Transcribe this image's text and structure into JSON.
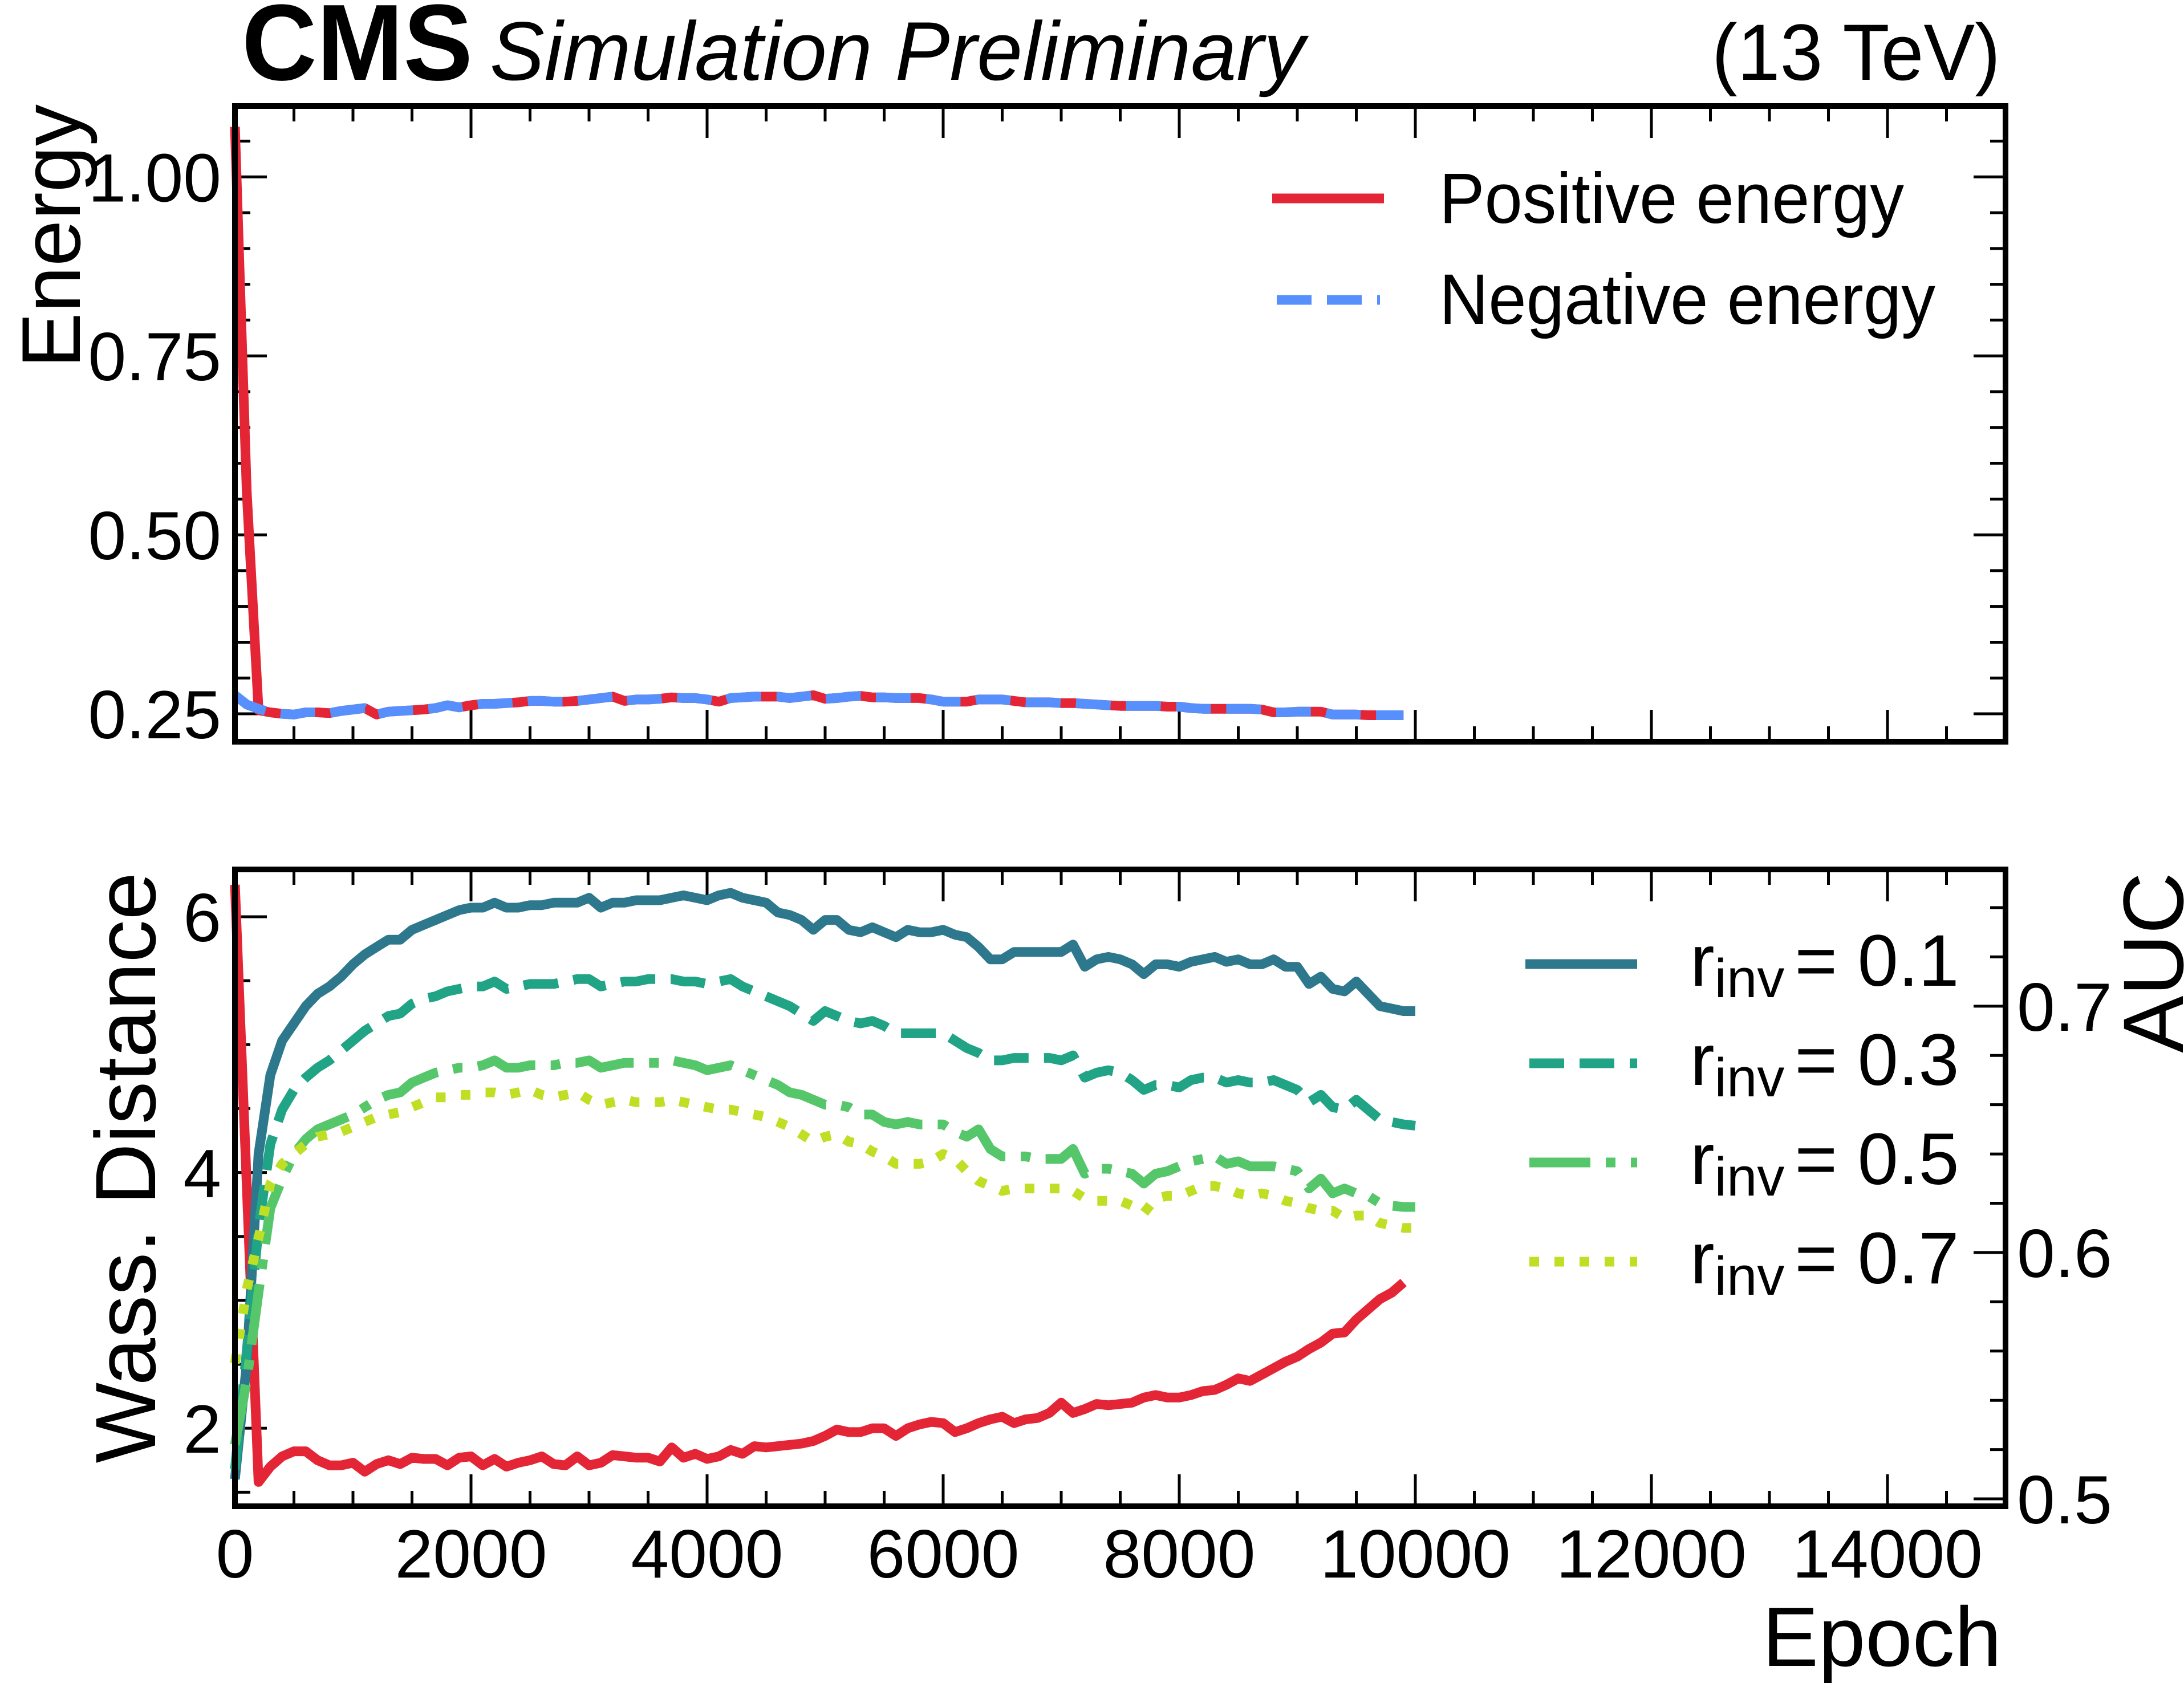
{
  "header": {
    "experiment": "CMS",
    "status": "Simulation Preliminary",
    "energy": "(13 TeV)"
  },
  "colors": {
    "positive_energy": "#E42536",
    "negative_energy": "#5790FC",
    "wass_distance": "#E42536",
    "rinv_0_1": "#2E788E",
    "rinv_0_3": "#21A385",
    "rinv_0_5": "#55C66A",
    "rinv_0_7": "#BFDF25",
    "axis": "#000000"
  },
  "chart_data": [
    {
      "type": "line",
      "panel": "top",
      "title": "",
      "xlabel": "",
      "ylabel": "Energy",
      "xlim": [
        0,
        15000
      ],
      "ylim": [
        0.211,
        1.099
      ],
      "x_ticks": [
        0,
        2000,
        4000,
        6000,
        8000,
        10000,
        12000,
        14000
      ],
      "x_minor_step": 500,
      "x_tick_labels_shown": false,
      "y_ticks": [
        0.25,
        0.5,
        0.75,
        1.0
      ],
      "y_tick_labels": [
        "0.25",
        "0.50",
        "0.75",
        "1.00"
      ],
      "y_minor_step": 0.05,
      "grid": false,
      "legend_position": "top-right",
      "epoch_start": 0,
      "epoch_step": 100,
      "series": [
        {
          "name": "Positive energy",
          "style": "solid",
          "color_key": "positive_energy",
          "axis": "left",
          "values": [
            1.07,
            0.56,
            0.255,
            0.252,
            0.25,
            0.249,
            0.252,
            0.252,
            0.251,
            0.254,
            0.256,
            0.258,
            0.249,
            0.253,
            0.254,
            0.255,
            0.256,
            0.258,
            0.262,
            0.259,
            0.262,
            0.264,
            0.264,
            0.265,
            0.266,
            0.268,
            0.268,
            0.267,
            0.267,
            0.268,
            0.27,
            0.272,
            0.274,
            0.268,
            0.27,
            0.27,
            0.271,
            0.273,
            0.272,
            0.272,
            0.27,
            0.267,
            0.272,
            0.273,
            0.274,
            0.274,
            0.274,
            0.272,
            0.274,
            0.276,
            0.271,
            0.272,
            0.274,
            0.275,
            0.273,
            0.273,
            0.272,
            0.272,
            0.272,
            0.27,
            0.267,
            0.267,
            0.267,
            0.27,
            0.27,
            0.27,
            0.268,
            0.266,
            0.266,
            0.266,
            0.265,
            0.265,
            0.264,
            0.263,
            0.262,
            0.261,
            0.261,
            0.261,
            0.261,
            0.26,
            0.26,
            0.258,
            0.257,
            0.257,
            0.257,
            0.257,
            0.257,
            0.256,
            0.252,
            0.252,
            0.253,
            0.253,
            0.253,
            0.249,
            0.249,
            0.249,
            0.248,
            0.248,
            0.248,
            0.248
          ]
        },
        {
          "name": "Negative energy",
          "style": "dashed",
          "color_key": "negative_energy",
          "axis": "left",
          "values": [
            0.276,
            0.263,
            0.257,
            0.252,
            0.25,
            0.249,
            0.252,
            0.252,
            0.251,
            0.254,
            0.256,
            0.258,
            0.249,
            0.253,
            0.254,
            0.255,
            0.256,
            0.258,
            0.262,
            0.259,
            0.262,
            0.264,
            0.264,
            0.265,
            0.266,
            0.268,
            0.268,
            0.267,
            0.267,
            0.268,
            0.27,
            0.272,
            0.274,
            0.268,
            0.27,
            0.27,
            0.271,
            0.273,
            0.272,
            0.272,
            0.27,
            0.267,
            0.272,
            0.273,
            0.274,
            0.274,
            0.274,
            0.272,
            0.274,
            0.276,
            0.271,
            0.272,
            0.274,
            0.275,
            0.273,
            0.273,
            0.272,
            0.272,
            0.272,
            0.27,
            0.267,
            0.267,
            0.267,
            0.27,
            0.27,
            0.27,
            0.268,
            0.266,
            0.266,
            0.266,
            0.265,
            0.265,
            0.264,
            0.263,
            0.262,
            0.261,
            0.261,
            0.261,
            0.261,
            0.26,
            0.26,
            0.258,
            0.257,
            0.257,
            0.257,
            0.257,
            0.257,
            0.256,
            0.252,
            0.252,
            0.253,
            0.253,
            0.253,
            0.249,
            0.249,
            0.249,
            0.248,
            0.248,
            0.248,
            0.248
          ]
        }
      ]
    },
    {
      "type": "line",
      "panel": "bottom",
      "title": "",
      "xlabel": "Epoch",
      "ylabel": "Wass.  Distance",
      "ylabel_right": "AUC",
      "xlim": [
        0,
        15000
      ],
      "ylim": [
        1.39,
        6.37
      ],
      "ylim_right": [
        0.497,
        0.7555
      ],
      "x_ticks": [
        0,
        2000,
        4000,
        6000,
        8000,
        10000,
        12000,
        14000
      ],
      "x_tick_labels": [
        "0",
        "2000",
        "4000",
        "6000",
        "8000",
        "10000",
        "12000",
        "14000"
      ],
      "x_minor_step": 500,
      "y_ticks": [
        2,
        4,
        6
      ],
      "y_tick_labels": [
        "2",
        "4",
        "6"
      ],
      "y_minor_step": 0.5,
      "y_ticks_right": [
        0.5,
        0.6,
        0.7
      ],
      "y_tick_labels_right": [
        "0.5",
        "0.6",
        "0.7"
      ],
      "y_minor_step_right": 0.02,
      "grid": false,
      "legend_position": "top-right",
      "epoch_start": 0,
      "epoch_step": 100,
      "series": [
        {
          "name": "Wass. Distance",
          "style": "solid",
          "color_key": "wass_distance",
          "axis": "left",
          "values": [
            6.25,
            3.9,
            1.58,
            1.7,
            1.78,
            1.82,
            1.82,
            1.75,
            1.71,
            1.71,
            1.73,
            1.66,
            1.72,
            1.75,
            1.72,
            1.77,
            1.76,
            1.76,
            1.71,
            1.77,
            1.78,
            1.71,
            1.76,
            1.7,
            1.73,
            1.75,
            1.78,
            1.72,
            1.71,
            1.78,
            1.71,
            1.73,
            1.79,
            1.78,
            1.77,
            1.77,
            1.74,
            1.85,
            1.77,
            1.8,
            1.76,
            1.78,
            1.83,
            1.8,
            1.86,
            1.85,
            1.86,
            1.87,
            1.88,
            1.9,
            1.94,
            1.99,
            1.97,
            1.97,
            2.0,
            2.0,
            1.94,
            2.0,
            2.03,
            2.05,
            2.04,
            1.97,
            2.0,
            2.04,
            2.07,
            2.09,
            2.04,
            2.07,
            2.08,
            2.12,
            2.2,
            2.12,
            2.15,
            2.19,
            2.18,
            2.19,
            2.2,
            2.24,
            2.26,
            2.24,
            2.24,
            2.26,
            2.29,
            2.3,
            2.34,
            2.39,
            2.37,
            2.42,
            2.47,
            2.52,
            2.56,
            2.62,
            2.67,
            2.74,
            2.75,
            2.85,
            2.93,
            3.01,
            3.06,
            3.14
          ]
        },
        {
          "name": "r_inv = 0.1",
          "label_symbol": "r",
          "label_sub": "inv",
          "label_value": "= 0.1",
          "style": "solid",
          "color_key": "rinv_0_1",
          "axis": "right",
          "values": [
            0.508,
            0.555,
            0.64,
            0.672,
            0.686,
            0.693,
            0.7,
            0.705,
            0.708,
            0.712,
            0.717,
            0.721,
            0.724,
            0.727,
            0.727,
            0.731,
            0.733,
            0.735,
            0.737,
            0.739,
            0.74,
            0.74,
            0.742,
            0.74,
            0.74,
            0.741,
            0.741,
            0.742,
            0.742,
            0.742,
            0.744,
            0.74,
            0.742,
            0.742,
            0.743,
            0.743,
            0.743,
            0.744,
            0.745,
            0.744,
            0.743,
            0.745,
            0.746,
            0.744,
            0.743,
            0.742,
            0.738,
            0.737,
            0.735,
            0.731,
            0.735,
            0.735,
            0.731,
            0.73,
            0.732,
            0.73,
            0.728,
            0.731,
            0.73,
            0.73,
            0.731,
            0.729,
            0.728,
            0.724,
            0.719,
            0.719,
            0.722,
            0.722,
            0.722,
            0.722,
            0.722,
            0.725,
            0.716,
            0.719,
            0.72,
            0.719,
            0.717,
            0.713,
            0.717,
            0.717,
            0.716,
            0.718,
            0.719,
            0.72,
            0.718,
            0.719,
            0.717,
            0.717,
            0.719,
            0.716,
            0.716,
            0.709,
            0.712,
            0.707,
            0.706,
            0.71,
            0.705,
            0.7,
            0.699,
            0.698,
            0.698
          ]
        },
        {
          "name": "r_inv = 0.3",
          "label_symbol": "r",
          "label_sub": "inv",
          "label_value": "= 0.3",
          "style": "dashed",
          "color_key": "rinv_0_3",
          "axis": "right",
          "values": [
            0.512,
            0.56,
            0.61,
            0.644,
            0.658,
            0.666,
            0.671,
            0.675,
            0.678,
            0.682,
            0.686,
            0.69,
            0.693,
            0.696,
            0.697,
            0.701,
            0.703,
            0.704,
            0.706,
            0.707,
            0.708,
            0.708,
            0.71,
            0.707,
            0.708,
            0.709,
            0.709,
            0.709,
            0.71,
            0.711,
            0.711,
            0.708,
            0.709,
            0.71,
            0.71,
            0.711,
            0.711,
            0.711,
            0.71,
            0.71,
            0.709,
            0.71,
            0.711,
            0.708,
            0.706,
            0.704,
            0.702,
            0.7,
            0.697,
            0.694,
            0.698,
            0.696,
            0.694,
            0.693,
            0.694,
            0.692,
            0.689,
            0.689,
            0.689,
            0.689,
            0.689,
            0.686,
            0.683,
            0.681,
            0.678,
            0.678,
            0.679,
            0.679,
            0.679,
            0.679,
            0.678,
            0.68,
            0.671,
            0.673,
            0.674,
            0.673,
            0.67,
            0.666,
            0.668,
            0.668,
            0.667,
            0.67,
            0.671,
            0.671,
            0.669,
            0.67,
            0.669,
            0.669,
            0.67,
            0.668,
            0.666,
            0.661,
            0.664,
            0.659,
            0.658,
            0.662,
            0.658,
            0.654,
            0.653,
            0.652,
            0.6515
          ]
        },
        {
          "name": "r_inv = 0.5",
          "label_symbol": "r",
          "label_sub": "inv",
          "label_value": "= 0.5",
          "style": "dashdot",
          "color_key": "rinv_0_5",
          "axis": "right",
          "values": [
            0.522,
            0.548,
            0.584,
            0.618,
            0.63,
            0.64,
            0.646,
            0.65,
            0.652,
            0.654,
            0.656,
            0.659,
            0.662,
            0.664,
            0.665,
            0.669,
            0.671,
            0.673,
            0.674,
            0.675,
            0.675,
            0.676,
            0.678,
            0.675,
            0.675,
            0.676,
            0.676,
            0.676,
            0.677,
            0.677,
            0.678,
            0.675,
            0.676,
            0.677,
            0.677,
            0.677,
            0.677,
            0.678,
            0.677,
            0.676,
            0.674,
            0.675,
            0.676,
            0.674,
            0.672,
            0.67,
            0.668,
            0.665,
            0.664,
            0.662,
            0.66,
            0.66,
            0.659,
            0.656,
            0.656,
            0.653,
            0.652,
            0.653,
            0.652,
            0.652,
            0.652,
            0.649,
            0.647,
            0.65,
            0.642,
            0.639,
            0.639,
            0.639,
            0.638,
            0.638,
            0.638,
            0.642,
            0.632,
            0.634,
            0.634,
            0.633,
            0.632,
            0.628,
            0.632,
            0.633,
            0.635,
            0.637,
            0.638,
            0.639,
            0.636,
            0.637,
            0.635,
            0.635,
            0.635,
            0.634,
            0.633,
            0.626,
            0.63,
            0.624,
            0.626,
            0.624,
            0.623,
            0.62,
            0.619,
            0.6185,
            0.6185
          ]
        },
        {
          "name": "r_inv = 0.7",
          "label_symbol": "r",
          "label_sub": "inv",
          "label_value": "= 0.7",
          "style": "dotted",
          "color_key": "rinv_0_7",
          "axis": "right",
          "values": [
            0.555,
            0.585,
            0.606,
            0.628,
            0.636,
            0.64,
            0.644,
            0.647,
            0.648,
            0.649,
            0.651,
            0.653,
            0.655,
            0.656,
            0.657,
            0.659,
            0.661,
            0.663,
            0.663,
            0.664,
            0.664,
            0.665,
            0.665,
            0.664,
            0.665,
            0.666,
            0.664,
            0.663,
            0.664,
            0.665,
            0.662,
            0.66,
            0.661,
            0.662,
            0.661,
            0.661,
            0.661,
            0.662,
            0.661,
            0.66,
            0.659,
            0.658,
            0.658,
            0.657,
            0.656,
            0.655,
            0.653,
            0.651,
            0.648,
            0.645,
            0.647,
            0.648,
            0.645,
            0.644,
            0.641,
            0.639,
            0.636,
            0.636,
            0.636,
            0.637,
            0.64,
            0.638,
            0.633,
            0.629,
            0.627,
            0.625,
            0.626,
            0.626,
            0.626,
            0.626,
            0.626,
            0.625,
            0.622,
            0.621,
            0.621,
            0.621,
            0.619,
            0.616,
            0.622,
            0.623,
            0.623,
            0.625,
            0.627,
            0.627,
            0.626,
            0.624,
            0.623,
            0.624,
            0.623,
            0.621,
            0.62,
            0.618,
            0.617,
            0.617,
            0.614,
            0.615,
            0.615,
            0.612,
            0.611,
            0.61,
            0.61
          ]
        }
      ]
    }
  ]
}
